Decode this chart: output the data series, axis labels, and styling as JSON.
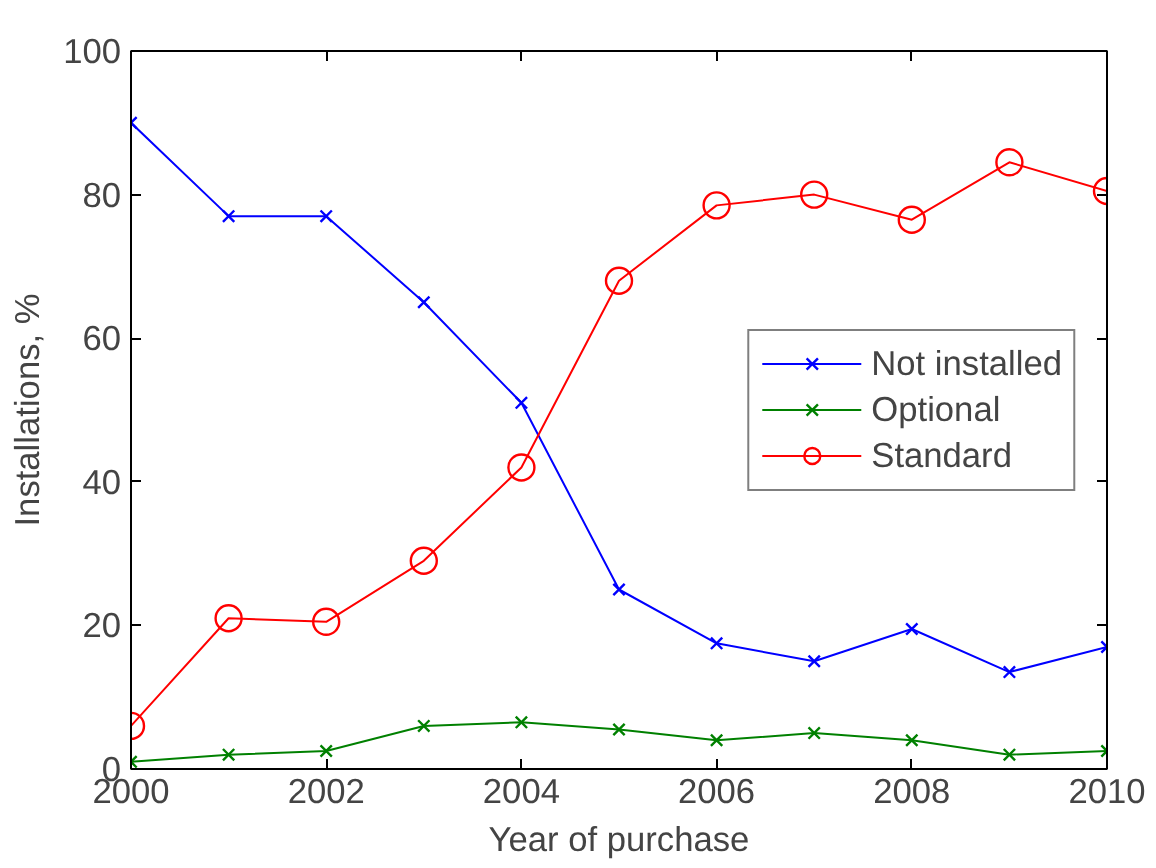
{
  "chart_data": {
    "type": "line",
    "xlabel": "Year of purchase",
    "ylabel": "Installations, %",
    "x": [
      2000,
      2001,
      2002,
      2003,
      2004,
      2005,
      2006,
      2007,
      2008,
      2009,
      2010
    ],
    "series": [
      {
        "name": "Not installed",
        "color": "#0000ff",
        "marker": "cross",
        "values": [
          90,
          77,
          77,
          65,
          51,
          25,
          17.5,
          15,
          19.5,
          13.5,
          17
        ]
      },
      {
        "name": "Optional",
        "color": "#008000",
        "marker": "cross",
        "values": [
          1,
          2,
          2.5,
          6,
          6.5,
          5.5,
          4,
          5,
          4,
          2,
          2.5
        ]
      },
      {
        "name": "Standard",
        "color": "#ff0000",
        "marker": "circle",
        "values": [
          6,
          21,
          20.5,
          29,
          42,
          68,
          78.5,
          80,
          76.5,
          84.5,
          80.5
        ]
      }
    ],
    "xlim": [
      2000,
      2010
    ],
    "xticks": [
      2000,
      2002,
      2004,
      2006,
      2008,
      2010
    ],
    "ylim": [
      0,
      100
    ],
    "yticks": [
      0,
      20,
      40,
      60,
      80,
      100
    ],
    "grid": false,
    "legend": "right",
    "line_style": "solid"
  }
}
